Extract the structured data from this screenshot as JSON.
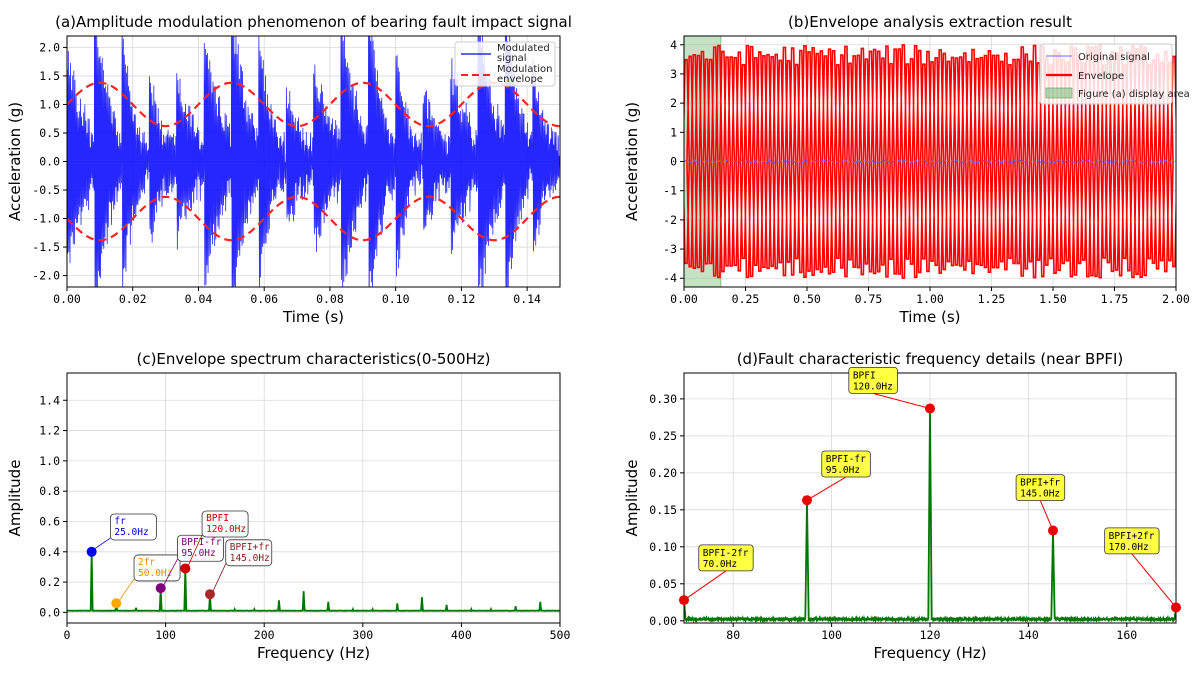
{
  "chart_data": [
    {
      "id": "a",
      "type": "line",
      "title": "(a)Amplitude modulation phenomenon of bearing fault impact signal",
      "xlabel": "Time (s)",
      "ylabel": "Acceleration (g)",
      "xlim": [
        0.0,
        0.15
      ],
      "ylim": [
        -2.2,
        2.2
      ],
      "xticks": [
        "0.00",
        "0.02",
        "0.04",
        "0.06",
        "0.08",
        "0.10",
        "0.12",
        "0.14"
      ],
      "xtick_values": [
        0.0,
        0.02,
        0.04,
        0.06,
        0.08,
        0.1,
        0.12,
        0.14
      ],
      "yticks": [
        "2.0",
        "1.5",
        "1.0",
        "0.5",
        "0.0",
        "-0.5",
        "-1.0",
        "-1.5",
        "-2.0"
      ],
      "ytick_values": [
        2.0,
        1.5,
        1.0,
        0.5,
        0.0,
        -0.5,
        -1.0,
        -1.5,
        -2.0
      ],
      "grid": true,
      "legend_position": "top-right",
      "series": [
        {
          "name": "Modulated signal",
          "legend_lines": [
            "Modulated",
            "signal"
          ],
          "color": "#0000ff",
          "style": "solid",
          "impact_times": [
            0.0,
            0.0083,
            0.0167,
            0.025,
            0.0333,
            0.0417,
            0.05,
            0.0583,
            0.0667,
            0.075,
            0.0833,
            0.0917,
            0.1,
            0.1083,
            0.1167,
            0.125,
            0.1333,
            0.1417
          ]
        },
        {
          "name": "Modulation envelope",
          "legend_lines": [
            "Modulation",
            "envelope"
          ],
          "color": "#ff2222",
          "style": "dashed",
          "mean": 1.0,
          "amplitude": 0.38,
          "frequency_hz": 25,
          "peak_time": 0.01
        }
      ]
    },
    {
      "id": "b",
      "type": "line",
      "title": "(b)Envelope analysis extraction result",
      "xlabel": "Time (s)",
      "ylabel": "Acceleration (g)",
      "xlim": [
        0.0,
        2.0
      ],
      "ylim": [
        -4.3,
        4.3
      ],
      "xticks": [
        "0.00",
        "0.25",
        "0.50",
        "0.75",
        "1.00",
        "1.25",
        "1.50",
        "1.75",
        "2.00"
      ],
      "xtick_values": [
        0.0,
        0.25,
        0.5,
        0.75,
        1.0,
        1.25,
        1.5,
        1.75,
        2.0
      ],
      "yticks": [
        "4",
        "3",
        "2",
        "1",
        "0",
        "-1",
        "-2",
        "-3",
        "-4"
      ],
      "ytick_values": [
        4,
        3,
        2,
        1,
        0,
        -1,
        -2,
        -3,
        -4
      ],
      "grid": true,
      "legend_position": "top-right",
      "series": [
        {
          "name": "Original signal",
          "color": "#6a6aff",
          "style": "solid"
        },
        {
          "name": "Envelope",
          "color": "#ff0000",
          "style": "solid",
          "peak_range": [
            3.3,
            4.0
          ],
          "impact_rate_hz": 60
        },
        {
          "name": "Figure (a) display area",
          "color": "#7fbf7f",
          "style": "area",
          "x_range": [
            0.0,
            0.15
          ]
        }
      ]
    },
    {
      "id": "c",
      "type": "line",
      "title": "(c)Envelope spectrum characteristics(0-500Hz)",
      "xlabel": "Frequency (Hz)",
      "ylabel": "Amplitude",
      "xlim": [
        0,
        500
      ],
      "ylim": [
        -0.07,
        1.58
      ],
      "xticks": [
        "0",
        "100",
        "200",
        "300",
        "400",
        "500"
      ],
      "xtick_values": [
        0,
        100,
        200,
        300,
        400,
        500
      ],
      "yticks": [
        "1.4",
        "1.2",
        "1.0",
        "0.8",
        "0.6",
        "0.4",
        "0.2",
        "0.0"
      ],
      "ytick_values": [
        1.4,
        1.2,
        1.0,
        0.8,
        0.6,
        0.4,
        0.2,
        0.0
      ],
      "grid": true,
      "line_color": "#007700",
      "baseline": 0.01,
      "peaks": [
        {
          "x": 25,
          "y": 0.4
        },
        {
          "x": 50,
          "y": 0.06
        },
        {
          "x": 70,
          "y": 0.03
        },
        {
          "x": 95,
          "y": 0.16
        },
        {
          "x": 120,
          "y": 0.29
        },
        {
          "x": 145,
          "y": 0.12
        },
        {
          "x": 170,
          "y": 0.02
        },
        {
          "x": 190,
          "y": 0.02
        },
        {
          "x": 215,
          "y": 0.08
        },
        {
          "x": 240,
          "y": 0.14
        },
        {
          "x": 265,
          "y": 0.07
        },
        {
          "x": 290,
          "y": 0.02
        },
        {
          "x": 310,
          "y": 0.02
        },
        {
          "x": 335,
          "y": 0.06
        },
        {
          "x": 360,
          "y": 0.1
        },
        {
          "x": 385,
          "y": 0.05
        },
        {
          "x": 410,
          "y": 0.02
        },
        {
          "x": 430,
          "y": 0.02
        },
        {
          "x": 455,
          "y": 0.04
        },
        {
          "x": 480,
          "y": 0.07
        }
      ],
      "annotations": [
        {
          "label": "fr",
          "value": "25.0Hz",
          "x": 25,
          "y": 0.4,
          "color": "#0000dd",
          "marker": "#0000ee",
          "box_x": 44,
          "box_y": 0.57
        },
        {
          "label": "2fr",
          "value": "50.0Hz",
          "x": 50,
          "y": 0.06,
          "color": "#ee8c00",
          "marker": "#ffa500",
          "box_x": 68,
          "box_y": 0.3
        },
        {
          "label": "BPFI-fr",
          "value": "95.0Hz",
          "x": 95,
          "y": 0.16,
          "color": "#800080",
          "marker": "#800080",
          "box_x": 112,
          "box_y": 0.43
        },
        {
          "label": "BPFI",
          "value": "120.0Hz",
          "x": 120,
          "y": 0.29,
          "color": "#cc0000",
          "marker": "#cc0000",
          "box_x": 137,
          "box_y": 0.59
        },
        {
          "label": "BPFI+fr",
          "value": "145.0Hz",
          "x": 145,
          "y": 0.12,
          "color": "#8b1a1a",
          "marker": "#a52a2a",
          "box_x": 161,
          "box_y": 0.4
        }
      ]
    },
    {
      "id": "d",
      "type": "line",
      "title": "(d)Fault characteristic frequency details (near BPFI)",
      "xlabel": "Frequency (Hz)",
      "ylabel": "Amplitude",
      "xlim": [
        70,
        170
      ],
      "ylim": [
        -0.003,
        0.335
      ],
      "xticks": [
        "80",
        "100",
        "120",
        "140",
        "160"
      ],
      "xtick_values": [
        80,
        100,
        120,
        140,
        160
      ],
      "yticks": [
        "0.30",
        "0.25",
        "0.20",
        "0.15",
        "0.10",
        "0.05",
        "0.00"
      ],
      "ytick_values": [
        0.3,
        0.25,
        0.2,
        0.15,
        0.1,
        0.05,
        0.0
      ],
      "grid": true,
      "line_color": "#007700",
      "peaks": [
        {
          "x": 70,
          "y": 0.028
        },
        {
          "x": 95,
          "y": 0.163
        },
        {
          "x": 120,
          "y": 0.287
        },
        {
          "x": 145,
          "y": 0.122
        },
        {
          "x": 170,
          "y": 0.018
        }
      ],
      "annotations": [
        {
          "label": "BPFI-2fr",
          "value": "70.0Hz",
          "x": 70,
          "y": 0.028,
          "box_x": 73,
          "box_y": 0.085
        },
        {
          "label": "BPFI-fr",
          "value": "95.0Hz",
          "x": 95,
          "y": 0.163,
          "box_x": 98,
          "box_y": 0.212
        },
        {
          "label": "BPFI",
          "value": "120.0Hz",
          "x": 120,
          "y": 0.287,
          "box_x": 103.5,
          "box_y": 0.325
        },
        {
          "label": "BPFI+fr",
          "value": "145.0Hz",
          "x": 145,
          "y": 0.122,
          "box_x": 137.5,
          "box_y": 0.18
        },
        {
          "label": "BPFI+2fr",
          "value": "170.0Hz",
          "x": 170,
          "y": 0.018,
          "box_x": 155.5,
          "box_y": 0.108
        }
      ]
    }
  ],
  "colors": {
    "annotation_box_d": "#ffff44",
    "grid": "#d9d9d9",
    "axes": "#000000"
  }
}
